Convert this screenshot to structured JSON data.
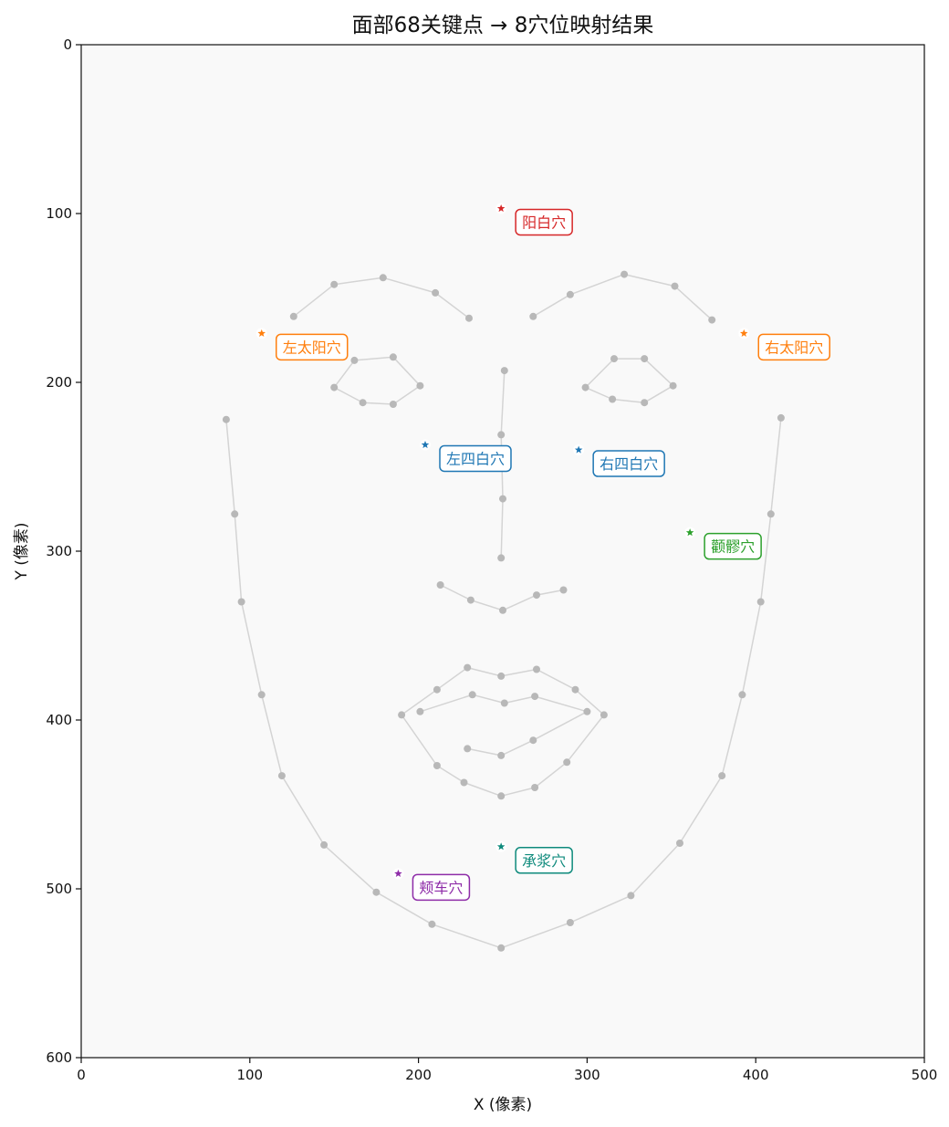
{
  "chart_data": {
    "type": "scatter",
    "title": "面部68关键点 → 8穴位映射结果",
    "xlabel": "X (像素)",
    "ylabel": "Y (像素)",
    "xlim": [
      0,
      500
    ],
    "ylim": [
      600,
      0
    ],
    "y_inverted": true,
    "x_ticks": [
      0,
      100,
      200,
      300,
      400,
      500
    ],
    "y_ticks": [
      0,
      100,
      200,
      300,
      400,
      500,
      600
    ],
    "grid": false,
    "plot_background": "#f9f9f9",
    "landmark_color": "#b8b8b8",
    "landmark_line_color": "#d4d4d4",
    "landmark_groups": [
      {
        "name": "jaw",
        "closed": false,
        "points": [
          [
            86,
            222
          ],
          [
            91,
            278
          ],
          [
            95,
            330
          ],
          [
            107,
            385
          ],
          [
            119,
            433
          ],
          [
            144,
            474
          ],
          [
            175,
            502
          ],
          [
            208,
            521
          ],
          [
            249,
            535
          ],
          [
            290,
            520
          ],
          [
            326,
            504
          ],
          [
            355,
            473
          ],
          [
            380,
            433
          ],
          [
            392,
            385
          ],
          [
            403,
            330
          ],
          [
            409,
            278
          ],
          [
            415,
            221
          ]
        ]
      },
      {
        "name": "left-eyebrow",
        "closed": false,
        "points": [
          [
            126,
            161
          ],
          [
            150,
            142
          ],
          [
            179,
            138
          ],
          [
            210,
            147
          ],
          [
            230,
            162
          ]
        ]
      },
      {
        "name": "right-eyebrow",
        "closed": false,
        "points": [
          [
            268,
            161
          ],
          [
            290,
            148
          ],
          [
            322,
            136
          ],
          [
            352,
            143
          ],
          [
            374,
            163
          ]
        ]
      },
      {
        "name": "nose-bridge",
        "closed": false,
        "points": [
          [
            251,
            193
          ],
          [
            249,
            231
          ],
          [
            250,
            269
          ],
          [
            249,
            304
          ]
        ]
      },
      {
        "name": "nose-bottom",
        "closed": false,
        "points": [
          [
            213,
            320
          ],
          [
            231,
            329
          ],
          [
            250,
            335
          ],
          [
            270,
            326
          ],
          [
            286,
            323
          ]
        ]
      },
      {
        "name": "left-eye",
        "closed": true,
        "points": [
          [
            150,
            203
          ],
          [
            162,
            187
          ],
          [
            185,
            185
          ],
          [
            201,
            202
          ],
          [
            185,
            213
          ],
          [
            167,
            212
          ]
        ]
      },
      {
        "name": "right-eye",
        "closed": true,
        "points": [
          [
            299,
            203
          ],
          [
            316,
            186
          ],
          [
            334,
            186
          ],
          [
            351,
            202
          ],
          [
            334,
            212
          ],
          [
            315,
            210
          ]
        ]
      },
      {
        "name": "outer-lip",
        "closed": true,
        "points": [
          [
            190,
            397
          ],
          [
            211,
            382
          ],
          [
            229,
            369
          ],
          [
            249,
            374
          ],
          [
            270,
            370
          ],
          [
            293,
            382
          ],
          [
            310,
            397
          ],
          [
            288,
            425
          ],
          [
            269,
            440
          ],
          [
            249,
            445
          ],
          [
            227,
            437
          ],
          [
            211,
            427
          ]
        ]
      },
      {
        "name": "inner-lip",
        "closed": false,
        "points": [
          [
            201,
            395
          ],
          [
            232,
            385
          ],
          [
            251,
            390
          ],
          [
            269,
            386
          ],
          [
            300,
            395
          ],
          [
            268,
            412
          ],
          [
            249,
            421
          ],
          [
            229,
            417
          ]
        ]
      }
    ],
    "acupoints": [
      {
        "name": "阳白穴",
        "x": 249,
        "y": 97,
        "color": "#d62728"
      },
      {
        "name": "左太阳穴",
        "x": 107,
        "y": 171,
        "color": "#ff7f0e"
      },
      {
        "name": "右太阳穴",
        "x": 393,
        "y": 171,
        "color": "#ff7f0e"
      },
      {
        "name": "左四白穴",
        "x": 204,
        "y": 237,
        "color": "#1f77b4"
      },
      {
        "name": "右四白穴",
        "x": 295,
        "y": 240,
        "color": "#1f77b4"
      },
      {
        "name": "颧髎穴",
        "x": 361,
        "y": 289,
        "color": "#2ca02c"
      },
      {
        "name": "承浆穴",
        "x": 249,
        "y": 475,
        "color": "#0e8a7c"
      },
      {
        "name": "颊车穴",
        "x": 188,
        "y": 491,
        "color": "#8e2ca8"
      }
    ]
  }
}
